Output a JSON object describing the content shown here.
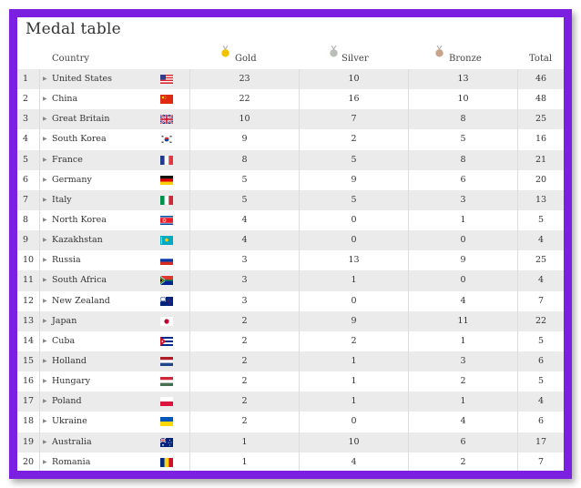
{
  "title": "Medal table",
  "header": {
    "country": "Country",
    "gold": "Gold",
    "silver": "Silver",
    "bronze": "Bronze",
    "total": "Total"
  },
  "icons": {
    "row_expand": "triangle-right-icon",
    "gold": "gold-medal-icon",
    "silver": "silver-medal-icon",
    "bronze": "bronze-medal-icon"
  },
  "colors": {
    "frame": "#7b1fe0",
    "row_alt": "#ebebeb",
    "gold": "#f2c200",
    "silver": "#b9beb6",
    "bronze": "#c9a489"
  },
  "rows": [
    {
      "rank": "1",
      "country": "United States",
      "flag": "us",
      "gold": "23",
      "silver": "10",
      "bronze": "13",
      "total": "46"
    },
    {
      "rank": "2",
      "country": "China",
      "flag": "cn",
      "gold": "22",
      "silver": "16",
      "bronze": "10",
      "total": "48"
    },
    {
      "rank": "3",
      "country": "Great Britain",
      "flag": "gb",
      "gold": "10",
      "silver": "7",
      "bronze": "8",
      "total": "25"
    },
    {
      "rank": "4",
      "country": "South Korea",
      "flag": "kr",
      "gold": "9",
      "silver": "2",
      "bronze": "5",
      "total": "16"
    },
    {
      "rank": "5",
      "country": "France",
      "flag": "fr",
      "gold": "8",
      "silver": "5",
      "bronze": "8",
      "total": "21"
    },
    {
      "rank": "6",
      "country": "Germany",
      "flag": "de",
      "gold": "5",
      "silver": "9",
      "bronze": "6",
      "total": "20"
    },
    {
      "rank": "7",
      "country": "Italy",
      "flag": "it",
      "gold": "5",
      "silver": "5",
      "bronze": "3",
      "total": "13"
    },
    {
      "rank": "8",
      "country": "North Korea",
      "flag": "kp",
      "gold": "4",
      "silver": "0",
      "bronze": "1",
      "total": "5"
    },
    {
      "rank": "9",
      "country": "Kazakhstan",
      "flag": "kz",
      "gold": "4",
      "silver": "0",
      "bronze": "0",
      "total": "4"
    },
    {
      "rank": "10",
      "country": "Russia",
      "flag": "ru",
      "gold": "3",
      "silver": "13",
      "bronze": "9",
      "total": "25"
    },
    {
      "rank": "11",
      "country": "South Africa",
      "flag": "za",
      "gold": "3",
      "silver": "1",
      "bronze": "0",
      "total": "4"
    },
    {
      "rank": "12",
      "country": "New Zealand",
      "flag": "nz",
      "gold": "3",
      "silver": "0",
      "bronze": "4",
      "total": "7"
    },
    {
      "rank": "13",
      "country": "Japan",
      "flag": "jp",
      "gold": "2",
      "silver": "9",
      "bronze": "11",
      "total": "22"
    },
    {
      "rank": "14",
      "country": "Cuba",
      "flag": "cu",
      "gold": "2",
      "silver": "2",
      "bronze": "1",
      "total": "5"
    },
    {
      "rank": "15",
      "country": "Holland",
      "flag": "nl",
      "gold": "2",
      "silver": "1",
      "bronze": "3",
      "total": "6"
    },
    {
      "rank": "16",
      "country": "Hungary",
      "flag": "hu",
      "gold": "2",
      "silver": "1",
      "bronze": "2",
      "total": "5"
    },
    {
      "rank": "17",
      "country": "Poland",
      "flag": "pl",
      "gold": "2",
      "silver": "1",
      "bronze": "1",
      "total": "4"
    },
    {
      "rank": "18",
      "country": "Ukraine",
      "flag": "ua",
      "gold": "2",
      "silver": "0",
      "bronze": "4",
      "total": "6"
    },
    {
      "rank": "19",
      "country": "Australia",
      "flag": "au",
      "gold": "1",
      "silver": "10",
      "bronze": "6",
      "total": "17"
    },
    {
      "rank": "20",
      "country": "Romania",
      "flag": "ro",
      "gold": "1",
      "silver": "4",
      "bronze": "2",
      "total": "7"
    }
  ]
}
